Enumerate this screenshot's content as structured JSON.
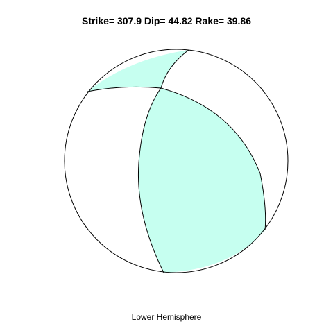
{
  "title": "Strike= 307.9 Dip= 44.82 Rake= 39.86",
  "caption": "Lower Hemisphere",
  "focal_mechanism": {
    "strike": 307.9,
    "dip": 44.82,
    "rake": 39.86,
    "hemisphere": "lower"
  },
  "colors": {
    "compression_fill": "#c6fff0",
    "dilatation_fill": "#ffffff",
    "outline": "#000000"
  }
}
